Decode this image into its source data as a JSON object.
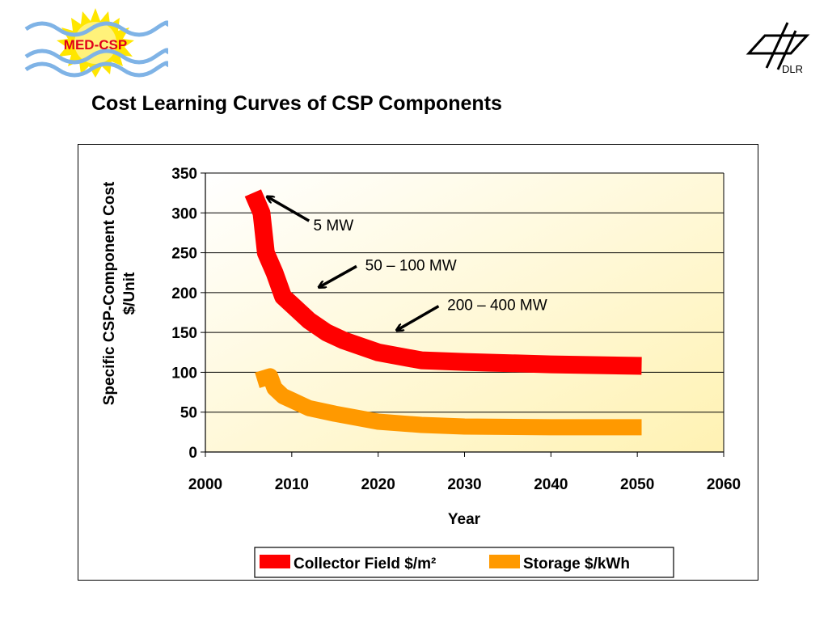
{
  "header": {
    "title": "Cost Learning Curves of CSP Components",
    "logo_left_text": "MED-CSP",
    "logo_right_text": "DLR"
  },
  "colors": {
    "collector": "#ff0000",
    "storage": "#ff9900",
    "plot_bg_light": "#ffffff",
    "plot_bg_warm": "#fff2b3"
  },
  "chart_data": {
    "type": "line",
    "title": "",
    "xlabel": "Year",
    "ylabel_line1": "Specific CSP-Component Cost",
    "ylabel_line2": "$/Unit",
    "xlim": [
      2000,
      2060
    ],
    "ylim": [
      0,
      350
    ],
    "x_ticks": [
      "2000",
      "2010",
      "2020",
      "2030",
      "2040",
      "2050",
      "2060"
    ],
    "y_ticks": [
      "0",
      "50",
      "100",
      "150",
      "200",
      "250",
      "300",
      "350"
    ],
    "grid": true,
    "legend": "bottom",
    "series": [
      {
        "name": "Collector Field $/m²",
        "color": "#ff0000",
        "x": [
          2005.5,
          2006.5,
          2007,
          2008,
          2009,
          2010,
          2012,
          2014,
          2016,
          2020,
          2025,
          2030,
          2040,
          2050.5
        ],
        "y": [
          325,
          300,
          250,
          225,
          195,
          185,
          165,
          150,
          140,
          125,
          115,
          113,
          110,
          108
        ]
      },
      {
        "name": "Storage $/kWh",
        "color": "#ff9900",
        "x": [
          2006,
          2007.5,
          2008,
          2009,
          2010,
          2012,
          2015,
          2020,
          2025,
          2030,
          2040,
          2050.5
        ],
        "y": [
          90,
          95,
          80,
          70,
          65,
          55,
          48,
          38,
          34,
          32,
          31,
          31
        ]
      }
    ],
    "annotations": [
      {
        "text": "5 MW",
        "label_x": 2012.5,
        "label_y": 285,
        "arrow_from_x": 2012,
        "arrow_from_y": 290,
        "arrow_to_x": 2007.2,
        "arrow_to_y": 320
      },
      {
        "text": "50 – 100 MW",
        "label_x": 2018.5,
        "label_y": 235,
        "arrow_from_x": 2017.5,
        "arrow_from_y": 233,
        "arrow_to_x": 2013.2,
        "arrow_to_y": 207
      },
      {
        "text": "200 – 400 MW",
        "label_x": 2028,
        "label_y": 185,
        "arrow_from_x": 2027,
        "arrow_from_y": 183,
        "arrow_to_x": 2022.2,
        "arrow_to_y": 153
      }
    ]
  }
}
